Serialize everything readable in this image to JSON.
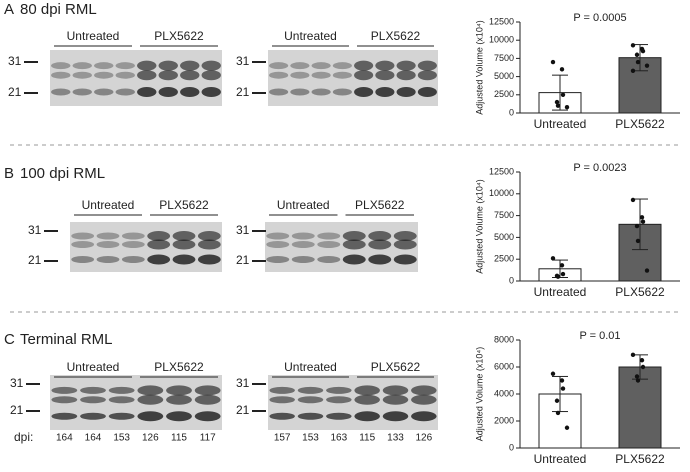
{
  "panels": [
    {
      "letter": "A",
      "title": "80 dpi RML",
      "blots": [
        {
          "groups": [
            "Untreated",
            "PLX5622"
          ],
          "markers": [
            "31",
            "21"
          ]
        },
        {
          "groups": [
            "Untreated",
            "PLX5622"
          ],
          "markers": [
            "31",
            "21"
          ]
        }
      ]
    },
    {
      "letter": "B",
      "title": "100 dpi RML",
      "blots": [
        {
          "groups": [
            "Untreated",
            "PLX5622"
          ],
          "markers": [
            "31",
            "21"
          ]
        },
        {
          "groups": [
            "Untreated",
            "PLX5622"
          ],
          "markers": [
            "31",
            "21"
          ]
        }
      ]
    },
    {
      "letter": "C",
      "title": "Terminal RML",
      "dpi_label": "dpi:",
      "blots": [
        {
          "groups": [
            "Untreated",
            "PLX5622"
          ],
          "markers": [
            "31",
            "21"
          ],
          "dpi": [
            "164",
            "164",
            "153",
            "126",
            "115",
            "117"
          ]
        },
        {
          "groups": [
            "Untreated",
            "PLX5622"
          ],
          "markers": [
            "31",
            "21"
          ],
          "dpi": [
            "157",
            "153",
            "163",
            "115",
            "133",
            "126"
          ]
        }
      ]
    }
  ],
  "chart_data": [
    {
      "type": "bar",
      "ylabel": "Adjusted Volume (x10⁴)",
      "annotation": "P = 0.0005",
      "categories": [
        "Untreated",
        "PLX5622"
      ],
      "values": [
        2800,
        7600
      ],
      "errors": [
        2400,
        1800
      ],
      "points": [
        [
          7000,
          6000,
          2500,
          1500,
          1000,
          800
        ],
        [
          9300,
          8800,
          8500,
          8000,
          7000,
          6500,
          5800
        ]
      ],
      "colors": [
        "#ffffff",
        "#606060"
      ],
      "ylim": [
        0,
        12500
      ],
      "yticks": [
        0,
        2500,
        5000,
        7500,
        10000,
        12500
      ]
    },
    {
      "type": "bar",
      "ylabel": "Adjusted Volume (x10⁴)",
      "annotation": "P = 0.0023",
      "categories": [
        "Untreated",
        "PLX5622"
      ],
      "values": [
        1400,
        6500
      ],
      "errors": [
        1000,
        2900
      ],
      "points": [
        [
          2600,
          1800,
          800,
          600,
          500
        ],
        [
          9300,
          7300,
          6800,
          6300,
          4600,
          1200
        ]
      ],
      "colors": [
        "#ffffff",
        "#606060"
      ],
      "ylim": [
        0,
        12500
      ],
      "yticks": [
        0,
        2500,
        5000,
        7500,
        10000,
        12500
      ]
    },
    {
      "type": "bar",
      "ylabel": "Adjusted Volume (x10⁴)",
      "annotation": "P = 0.01",
      "categories": [
        "Untreated",
        "PLX5622"
      ],
      "values": [
        4000,
        6000
      ],
      "errors": [
        1300,
        900
      ],
      "points": [
        [
          5500,
          5000,
          4400,
          3500,
          2600,
          1500
        ],
        [
          6900,
          6500,
          6000,
          5300,
          5000
        ]
      ],
      "colors": [
        "#ffffff",
        "#606060"
      ],
      "ylim": [
        0,
        8000
      ],
      "yticks": [
        0,
        2000,
        4000,
        6000,
        8000
      ]
    }
  ]
}
